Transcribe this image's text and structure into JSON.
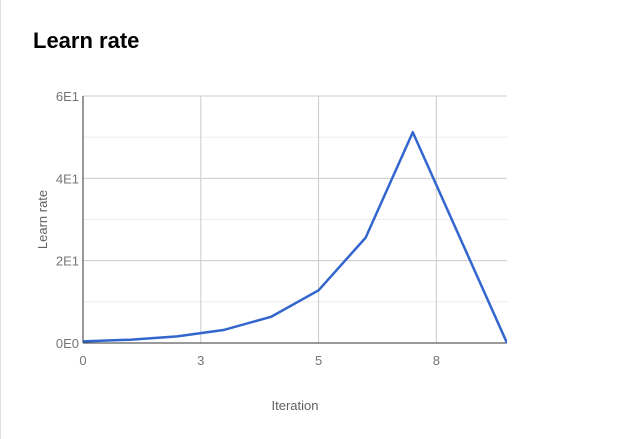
{
  "title": "Learn rate",
  "chart_data": {
    "type": "line",
    "title": "Learn rate",
    "xlabel": "Iteration",
    "ylabel": "Learn rate",
    "x": [
      0,
      1,
      2,
      3,
      4,
      5,
      6,
      7,
      8,
      9
    ],
    "series": [
      {
        "values": [
          0.4,
          0.8,
          1.6,
          3.2,
          6.4,
          12.8,
          25.6,
          51.2,
          25.6,
          0
        ]
      }
    ],
    "xlim": [
      0,
      9
    ],
    "ylim": [
      0,
      60
    ],
    "x_ticks": [
      0,
      2.5,
      5,
      7.5
    ],
    "x_tick_labels": [
      "0",
      "3",
      "5",
      "8"
    ],
    "y_ticks": [
      0,
      20,
      40,
      60
    ],
    "y_tick_labels": [
      "0E0",
      "2E1",
      "4E1",
      "6E1"
    ],
    "y_minor_ticks": [
      10,
      30,
      50
    ],
    "grid": true,
    "line_color": "#3366cc"
  }
}
